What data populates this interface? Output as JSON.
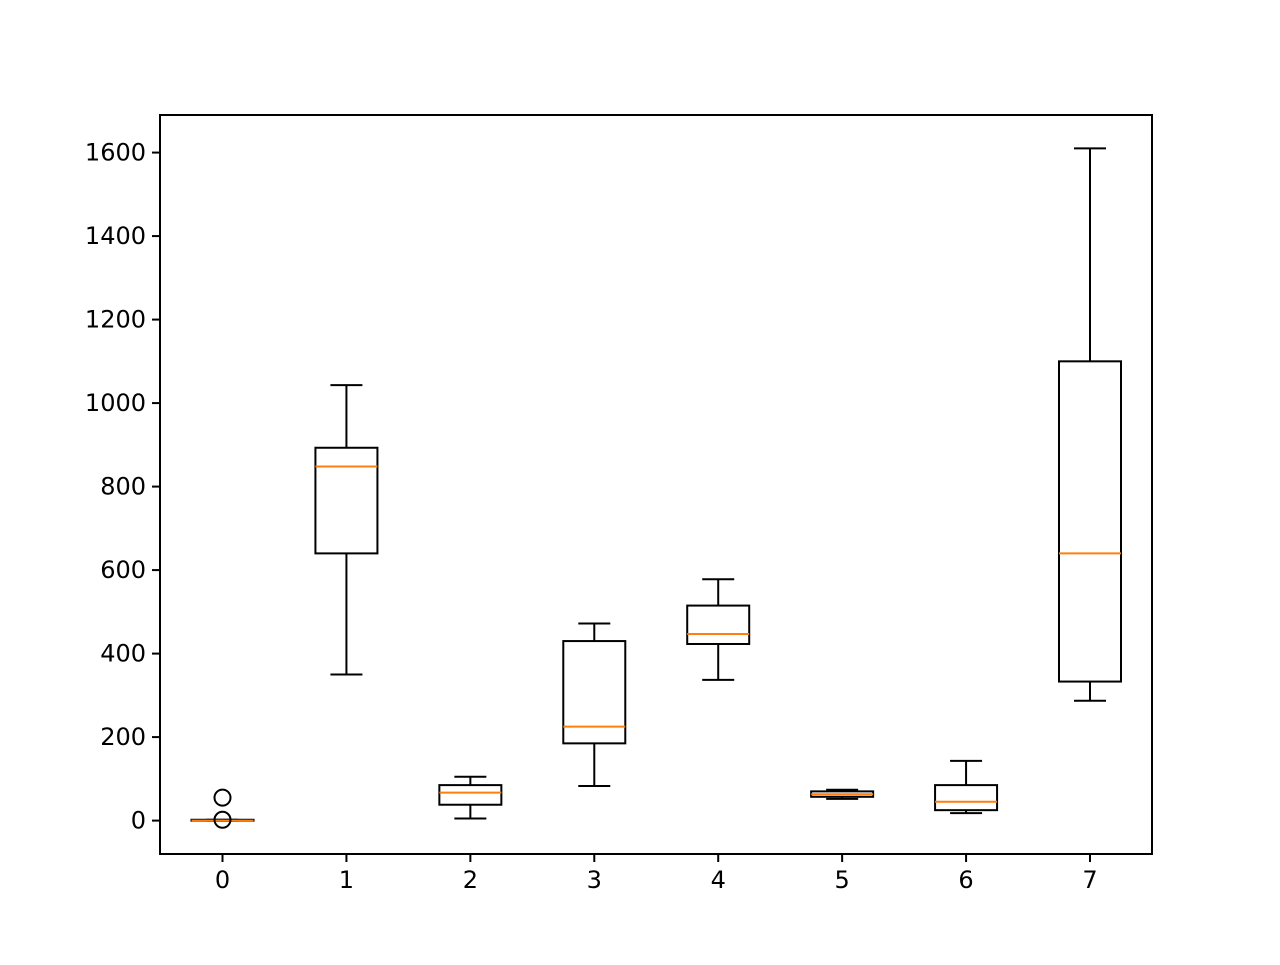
{
  "chart_data": {
    "type": "boxplot",
    "title": "",
    "xlabel": "",
    "ylabel": "",
    "categories": [
      "0",
      "1",
      "2",
      "3",
      "4",
      "5",
      "6",
      "7"
    ],
    "ylim": [
      -80,
      1690
    ],
    "yticks": [
      0,
      200,
      400,
      600,
      800,
      1000,
      1200,
      1400,
      1600
    ],
    "ytick_labels": [
      "0",
      "200",
      "400",
      "600",
      "800",
      "1000",
      "1200",
      "1400",
      "1600"
    ],
    "series": [
      {
        "name": "0",
        "whisker_low": 0,
        "q1": 0,
        "median": 0,
        "q3": 2,
        "whisker_high": 2,
        "outliers": [
          55,
          2
        ]
      },
      {
        "name": "1",
        "whisker_low": 350,
        "q1": 640,
        "median": 848,
        "q3": 893,
        "whisker_high": 1043,
        "outliers": []
      },
      {
        "name": "2",
        "whisker_low": 5,
        "q1": 38,
        "median": 67,
        "q3": 85,
        "whisker_high": 105,
        "outliers": []
      },
      {
        "name": "3",
        "whisker_low": 83,
        "q1": 185,
        "median": 225,
        "q3": 430,
        "whisker_high": 472,
        "outliers": []
      },
      {
        "name": "4",
        "whisker_low": 337,
        "q1": 423,
        "median": 447,
        "q3": 515,
        "whisker_high": 578,
        "outliers": []
      },
      {
        "name": "5",
        "whisker_low": 52,
        "q1": 57,
        "median": 63,
        "q3": 70,
        "whisker_high": 74,
        "outliers": []
      },
      {
        "name": "6",
        "whisker_low": 18,
        "q1": 25,
        "median": 45,
        "q3": 85,
        "whisker_high": 143,
        "outliers": []
      },
      {
        "name": "7",
        "whisker_low": 287,
        "q1": 333,
        "median": 640,
        "q3": 1100,
        "whisker_high": 1610,
        "outliers": []
      }
    ],
    "colors": {
      "box": "#000000",
      "median": "#ff7f0e",
      "background": "#ffffff"
    },
    "grid": false,
    "legend": "none"
  }
}
